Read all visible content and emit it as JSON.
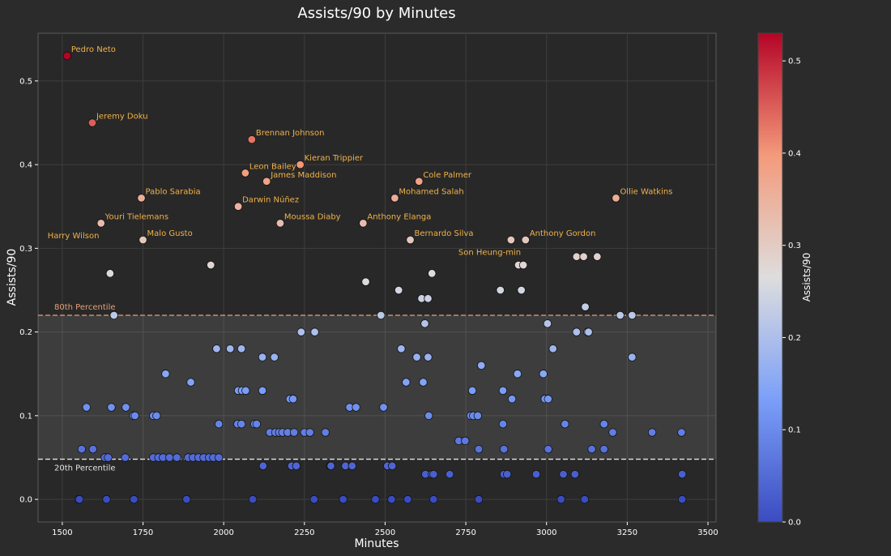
{
  "chart_data": {
    "type": "scatter",
    "title": "Assists/90 by Minutes",
    "xlabel": "Minutes",
    "ylabel": "Assists/90",
    "xlim": [
      1425,
      3525
    ],
    "ylim": [
      -0.027,
      0.557
    ],
    "xticks": [
      1500,
      1750,
      2000,
      2250,
      2500,
      2750,
      3000,
      3250,
      3500
    ],
    "xtick_labels": [
      "1500",
      "1750",
      "2000",
      "2250",
      "2500",
      "2750",
      "3000",
      "3250",
      "3500"
    ],
    "yticks": [
      0.0,
      0.1,
      0.2,
      0.3,
      0.4,
      0.5
    ],
    "ytick_labels": [
      "0.0",
      "0.1",
      "0.2",
      "0.3",
      "0.4",
      "0.5"
    ],
    "grid": true,
    "colormap": "coolwarm",
    "colorbar": {
      "label": "Assists/90",
      "range": [
        0.0,
        0.53
      ],
      "ticks": [
        0.0,
        0.1,
        0.2,
        0.3,
        0.4,
        0.5
      ],
      "tick_labels": [
        "0.0",
        "0.1",
        "0.2",
        "0.3",
        "0.4",
        "0.5"
      ]
    },
    "reference_lines": [
      {
        "label": "80th Percentile",
        "y": 0.22,
        "color": "#e8a07a"
      },
      {
        "label": "20th Percentile",
        "y": 0.048,
        "color": "#e6e6e6"
      }
    ],
    "shaded_band": [
      0.048,
      0.22
    ],
    "labeled_points": [
      {
        "name": "Pedro Neto",
        "x": 1515,
        "y": 0.53
      },
      {
        "name": "Jeremy Doku",
        "x": 1593,
        "y": 0.45
      },
      {
        "name": "Brennan Johnson",
        "x": 2087,
        "y": 0.43
      },
      {
        "name": "Kieran Trippier",
        "x": 2237,
        "y": 0.4
      },
      {
        "name": "Leon Bailey",
        "x": 2067,
        "y": 0.39
      },
      {
        "name": "James Maddison",
        "x": 2133,
        "y": 0.38
      },
      {
        "name": "Cole Palmer",
        "x": 2605,
        "y": 0.38
      },
      {
        "name": "Pablo Sarabia",
        "x": 1745,
        "y": 0.36
      },
      {
        "name": "Mohamed Salah",
        "x": 2530,
        "y": 0.36
      },
      {
        "name": "Ollie Watkins",
        "x": 3215,
        "y": 0.36
      },
      {
        "name": "Darwin Núñez",
        "x": 2045,
        "y": 0.35
      },
      {
        "name": "Youri Tielemans",
        "x": 1620,
        "y": 0.33
      },
      {
        "name": "Moussa Diaby",
        "x": 2175,
        "y": 0.33
      },
      {
        "name": "Anthony Elanga",
        "x": 2432,
        "y": 0.33
      },
      {
        "name": "Harry Wilson",
        "x": 1620,
        "y": 0.33
      },
      {
        "name": "Malo Gusto",
        "x": 1750,
        "y": 0.31
      },
      {
        "name": "Bernardo Silva",
        "x": 2578,
        "y": 0.31
      },
      {
        "name": "Anthony Gordon",
        "x": 2935,
        "y": 0.31
      },
      {
        "name": "Son Heung-min",
        "x": 2890,
        "y": 0.31
      }
    ],
    "points": [
      [
        1515,
        0.53
      ],
      [
        1593,
        0.45
      ],
      [
        2087,
        0.43
      ],
      [
        2237,
        0.4
      ],
      [
        2067,
        0.39
      ],
      [
        2133,
        0.38
      ],
      [
        2605,
        0.38
      ],
      [
        1745,
        0.36
      ],
      [
        2530,
        0.36
      ],
      [
        3215,
        0.36
      ],
      [
        2045,
        0.35
      ],
      [
        1620,
        0.33
      ],
      [
        2175,
        0.33
      ],
      [
        2432,
        0.33
      ],
      [
        1750,
        0.31
      ],
      [
        2578,
        0.31
      ],
      [
        2890,
        0.31
      ],
      [
        2935,
        0.31
      ],
      [
        1648,
        0.27
      ],
      [
        1960,
        0.28
      ],
      [
        2440,
        0.26
      ],
      [
        2542,
        0.25
      ],
      [
        2613,
        0.24
      ],
      [
        2633,
        0.24
      ],
      [
        2645,
        0.27
      ],
      [
        2857,
        0.25
      ],
      [
        2913,
        0.28
      ],
      [
        2928,
        0.28
      ],
      [
        2922,
        0.25
      ],
      [
        3093,
        0.29
      ],
      [
        3115,
        0.29
      ],
      [
        3157,
        0.29
      ],
      [
        3120,
        0.23
      ],
      [
        3228,
        0.22
      ],
      [
        3265,
        0.22
      ],
      [
        1660,
        0.22
      ],
      [
        2487,
        0.22
      ],
      [
        2623,
        0.21
      ],
      [
        3003,
        0.21
      ],
      [
        2240,
        0.2
      ],
      [
        2282,
        0.2
      ],
      [
        3093,
        0.2
      ],
      [
        3127,
        0.2
      ],
      [
        3130,
        0.2
      ],
      [
        1978,
        0.18
      ],
      [
        2020,
        0.18
      ],
      [
        2055,
        0.18
      ],
      [
        2550,
        0.18
      ],
      [
        3020,
        0.18
      ],
      [
        2120,
        0.17
      ],
      [
        2157,
        0.17
      ],
      [
        2598,
        0.17
      ],
      [
        2633,
        0.17
      ],
      [
        3265,
        0.17
      ],
      [
        2798,
        0.16
      ],
      [
        1820,
        0.15
      ],
      [
        2910,
        0.15
      ],
      [
        2990,
        0.15
      ],
      [
        1898,
        0.14
      ],
      [
        2565,
        0.14
      ],
      [
        2618,
        0.14
      ],
      [
        2770,
        0.13
      ],
      [
        2865,
        0.13
      ],
      [
        2045,
        0.13
      ],
      [
        2057,
        0.13
      ],
      [
        2068,
        0.13
      ],
      [
        2120,
        0.13
      ],
      [
        2205,
        0.12
      ],
      [
        2215,
        0.12
      ],
      [
        2893,
        0.12
      ],
      [
        2995,
        0.12
      ],
      [
        3005,
        0.12
      ],
      [
        1575,
        0.11
      ],
      [
        1652,
        0.11
      ],
      [
        1697,
        0.11
      ],
      [
        2390,
        0.11
      ],
      [
        2410,
        0.11
      ],
      [
        2495,
        0.11
      ],
      [
        1720,
        0.1
      ],
      [
        1725,
        0.1
      ],
      [
        1782,
        0.1
      ],
      [
        1792,
        0.1
      ],
      [
        2635,
        0.1
      ],
      [
        2765,
        0.1
      ],
      [
        2773,
        0.1
      ],
      [
        2787,
        0.1
      ],
      [
        1985,
        0.09
      ],
      [
        2043,
        0.09
      ],
      [
        2055,
        0.09
      ],
      [
        2095,
        0.09
      ],
      [
        2102,
        0.09
      ],
      [
        2865,
        0.09
      ],
      [
        3057,
        0.09
      ],
      [
        3178,
        0.09
      ],
      [
        2143,
        0.08
      ],
      [
        2160,
        0.08
      ],
      [
        2172,
        0.08
      ],
      [
        2182,
        0.08
      ],
      [
        2198,
        0.08
      ],
      [
        2218,
        0.08
      ],
      [
        2250,
        0.08
      ],
      [
        2267,
        0.08
      ],
      [
        2315,
        0.08
      ],
      [
        3205,
        0.08
      ],
      [
        3327,
        0.08
      ],
      [
        3418,
        0.08
      ],
      [
        2728,
        0.07
      ],
      [
        2748,
        0.07
      ],
      [
        1560,
        0.06
      ],
      [
        1595,
        0.06
      ],
      [
        2790,
        0.06
      ],
      [
        2868,
        0.06
      ],
      [
        3005,
        0.06
      ],
      [
        3140,
        0.06
      ],
      [
        3178,
        0.06
      ],
      [
        1632,
        0.05
      ],
      [
        1642,
        0.05
      ],
      [
        1695,
        0.05
      ],
      [
        1782,
        0.05
      ],
      [
        1798,
        0.05
      ],
      [
        1812,
        0.05
      ],
      [
        1832,
        0.05
      ],
      [
        1855,
        0.05
      ],
      [
        1890,
        0.05
      ],
      [
        1905,
        0.05
      ],
      [
        1922,
        0.05
      ],
      [
        1938,
        0.05
      ],
      [
        1955,
        0.05
      ],
      [
        1968,
        0.05
      ],
      [
        1985,
        0.05
      ],
      [
        2122,
        0.04
      ],
      [
        2210,
        0.04
      ],
      [
        2225,
        0.04
      ],
      [
        2330,
        0.04
      ],
      [
        2332,
        0.04
      ],
      [
        2377,
        0.04
      ],
      [
        2398,
        0.04
      ],
      [
        2507,
        0.04
      ],
      [
        2522,
        0.04
      ],
      [
        2625,
        0.03
      ],
      [
        2645,
        0.03
      ],
      [
        2650,
        0.03
      ],
      [
        2700,
        0.03
      ],
      [
        2868,
        0.03
      ],
      [
        2878,
        0.03
      ],
      [
        2968,
        0.03
      ],
      [
        3052,
        0.03
      ],
      [
        3088,
        0.03
      ],
      [
        3420,
        0.03
      ],
      [
        1550,
        0.0
      ],
      [
        1553,
        0.0
      ],
      [
        1637,
        0.0
      ],
      [
        1722,
        0.0
      ],
      [
        1885,
        0.0
      ],
      [
        2090,
        0.0
      ],
      [
        2280,
        0.0
      ],
      [
        2370,
        0.0
      ],
      [
        2470,
        0.0
      ],
      [
        2520,
        0.0
      ],
      [
        2570,
        0.0
      ],
      [
        2650,
        0.0
      ],
      [
        2790,
        0.0
      ],
      [
        3045,
        0.0
      ],
      [
        3118,
        0.0
      ],
      [
        3420,
        0.0
      ]
    ]
  }
}
